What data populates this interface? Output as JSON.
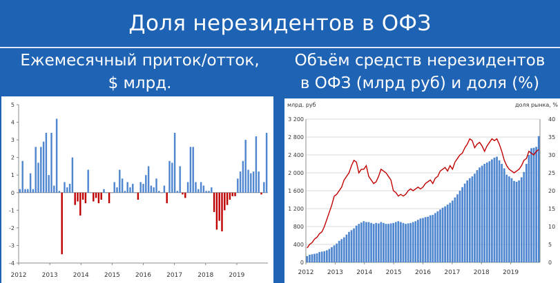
{
  "header": {
    "title": "Доля нерезидентов в ОФЗ"
  },
  "left_title": {
    "line1": "Ежемесячный приток/отток,",
    "line2": "$ млрд."
  },
  "right_title": {
    "line1": "Объём средств нерезидентов",
    "line2": "в ОФЗ (млрд руб) и доля (%)"
  },
  "chart_data": [
    {
      "type": "bar",
      "title": "Ежемесячный приток/отток, $ млрд.",
      "x_tick_labels": [
        "2012",
        "2013",
        "2014",
        "2015",
        "2016",
        "2017",
        "2018",
        "2019"
      ],
      "x_range": [
        2012,
        2020
      ],
      "ylim": [
        -4,
        5
      ],
      "y_ticks": [
        -4,
        -3,
        -2,
        -1,
        0,
        1,
        2,
        3,
        4,
        5
      ],
      "grid": false,
      "colors": {
        "positive": "#4f86d0",
        "negative": "#c00000"
      },
      "series": [
        {
          "values": [
            0.2,
            1.8,
            0.2,
            0.2,
            1.1,
            0.2,
            2.6,
            1.7,
            2.6,
            2.9,
            3.4,
            1.0,
            3.4,
            0.4,
            4.2,
            0.1,
            -3.5,
            0.6,
            0.3,
            0.5,
            2.0,
            -0.7,
            -0.5,
            -1.3,
            -0.4,
            -0.6,
            1.3,
            0.0,
            -0.5,
            -0.3,
            -0.6,
            -0.4,
            0.2,
            0.0,
            -0.6,
            0.0,
            0.6,
            0.3,
            1.3,
            0.8,
            0.1,
            0.6,
            0.3,
            0.5,
            0.0,
            -0.4,
            0.6,
            0.5,
            1.0,
            1.5,
            0.4,
            0.3,
            0.8,
            0.1,
            0.0,
            0.4,
            -0.6,
            1.8,
            1.7,
            3.4,
            0.1,
            1.5,
            -0.1,
            -0.3,
            0.6,
            2.6,
            2.6,
            0.6,
            0.2,
            0.6,
            0.4,
            0.1,
            0.1,
            0.3,
            -1.1,
            -2.1,
            -1.6,
            -2.2,
            -1.0,
            -0.7,
            -0.4,
            -0.2,
            -0.2,
            0.8,
            1.2,
            1.8,
            3.0,
            1.3,
            1.1,
            1.2,
            3.2,
            1.2,
            -0.1,
            0.6,
            3.4
          ]
        }
      ]
    },
    {
      "type": "bar",
      "title": "Объём средств нерезидентов в ОФЗ (млрд руб) и доля (%)",
      "ylabel": "млрд. руб",
      "y2label": "доля рынка, %",
      "x_tick_labels": [
        "2012",
        "2013",
        "2014",
        "2015",
        "2016",
        "2017",
        "2018",
        "2019"
      ],
      "x_range": [
        2012,
        2020
      ],
      "ylim": [
        0,
        3200
      ],
      "y_ticks": [
        0,
        400,
        800,
        1200,
        1600,
        2000,
        2400,
        2800,
        3200
      ],
      "y_tick_labels": [
        "0",
        "400",
        "800",
        "1 200",
        "1 600",
        "2 000",
        "2 400",
        "2 800",
        "3 200"
      ],
      "y2lim": [
        0,
        40
      ],
      "y2_ticks": [
        0,
        5,
        10,
        15,
        20,
        25,
        30,
        35,
        40
      ],
      "grid": true,
      "colors": {
        "bars": "#4f86d0",
        "line": "#c00000"
      },
      "series": [
        {
          "kind": "bar",
          "values": [
            140,
            170,
            180,
            190,
            200,
            230,
            240,
            250,
            270,
            300,
            340,
            380,
            420,
            480,
            520,
            560,
            620,
            680,
            720,
            760,
            820,
            860,
            890,
            920,
            900,
            900,
            880,
            860,
            880,
            870,
            900,
            880,
            860,
            860,
            870,
            880,
            900,
            920,
            900,
            880,
            860,
            870,
            880,
            900,
            920,
            950,
            980,
            990,
            1010,
            1020,
            1050,
            1060,
            1100,
            1140,
            1180,
            1220,
            1250,
            1290,
            1330,
            1380,
            1450,
            1520,
            1600,
            1680,
            1760,
            1830,
            1880,
            1920,
            1980,
            2060,
            2120,
            2160,
            2200,
            2230,
            2260,
            2300,
            2340,
            2360,
            2280,
            2200,
            2100,
            1960,
            1920,
            1880,
            1820,
            1800,
            1830,
            1900,
            2020,
            2200,
            2400,
            2550,
            2560,
            2580,
            2820
          ]
        },
        {
          "kind": "line",
          "axis": "right",
          "values": [
            4.0,
            5.0,
            5.5,
            6.5,
            7.0,
            8.0,
            8.5,
            10.0,
            12.0,
            14.0,
            16.0,
            18.5,
            19.0,
            20.0,
            21.0,
            23.0,
            24.0,
            25.0,
            27.0,
            28.5,
            28.0,
            25.0,
            26.0,
            26.0,
            27.0,
            24.0,
            23.0,
            22.0,
            22.5,
            24.0,
            26.0,
            25.5,
            25.0,
            24.0,
            23.0,
            20.0,
            19.5,
            18.5,
            19.0,
            18.5,
            19.0,
            20.0,
            20.5,
            20.0,
            20.5,
            21.0,
            20.5,
            21.0,
            22.0,
            22.5,
            23.0,
            22.0,
            23.5,
            24.0,
            25.5,
            26.0,
            26.5,
            25.5,
            27.0,
            26.0,
            28.0,
            29.0,
            30.0,
            30.5,
            32.0,
            33.0,
            34.5,
            34.0,
            32.0,
            33.0,
            33.5,
            32.5,
            31.0,
            32.5,
            33.5,
            34.5,
            34.0,
            34.5,
            33.0,
            31.0,
            28.5,
            27.0,
            26.0,
            25.5,
            25.0,
            25.5,
            26.0,
            27.0,
            28.5,
            29.0,
            31.0,
            30.5,
            30.0,
            31.0,
            31.5
          ]
        }
      ]
    }
  ]
}
